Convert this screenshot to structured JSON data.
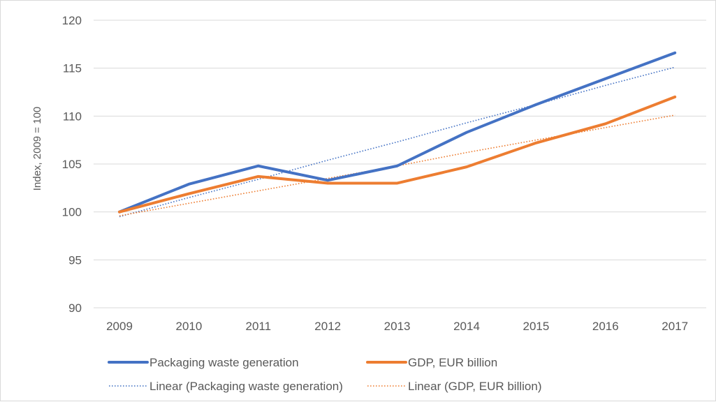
{
  "chart_data": {
    "type": "line",
    "title": "",
    "xlabel": "",
    "ylabel": "Index, 2009 = 100",
    "categories": [
      "2009",
      "2010",
      "2011",
      "2012",
      "2013",
      "2014",
      "2015",
      "2016",
      "2017"
    ],
    "ylim": [
      90,
      120
    ],
    "yticks": [
      "90",
      "95",
      "100",
      "105",
      "110",
      "115",
      "120"
    ],
    "grid": true,
    "legend_position": "bottom",
    "series": [
      {
        "name": "Packaging waste generation",
        "values": [
          100,
          102.9,
          104.8,
          103.3,
          104.8,
          108.3,
          111.2,
          113.9,
          116.6
        ],
        "color": "#4472C4",
        "style": "solid"
      },
      {
        "name": "GDP, EUR billion",
        "values": [
          100,
          101.9,
          103.7,
          103.0,
          103.0,
          104.7,
          107.2,
          109.2,
          112.0
        ],
        "color": "#ED7D31",
        "style": "solid"
      },
      {
        "name": "Linear (Packaging waste generation)",
        "values": [
          99.5,
          101.5,
          103.4,
          105.4,
          107.3,
          109.3,
          111.2,
          113.2,
          115.1
        ],
        "color": "#4472C4",
        "style": "dotted"
      },
      {
        "name": "Linear (GDP, EUR billion)",
        "values": [
          99.6,
          100.9,
          102.2,
          103.5,
          104.8,
          106.2,
          107.5,
          108.8,
          110.1
        ],
        "color": "#ED7D31",
        "style": "dotted"
      }
    ]
  }
}
